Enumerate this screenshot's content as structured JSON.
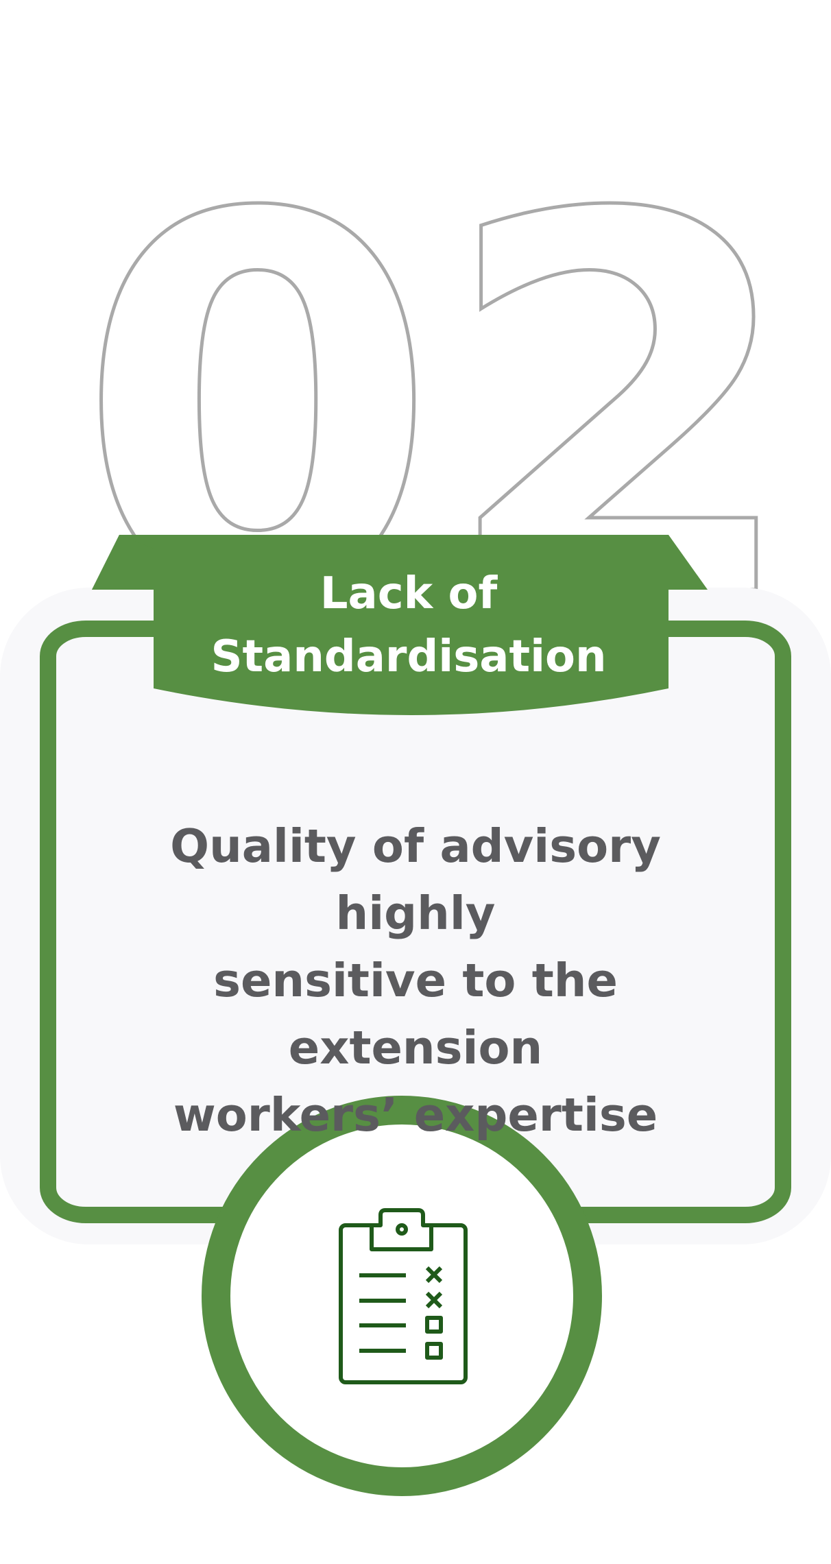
{
  "badge": {
    "number": "02",
    "title_line1": "Lack of",
    "title_line2": "Standardisation"
  },
  "card": {
    "text_line1": "Quality of advisory highly",
    "text_line2": "sensitive to the extension",
    "text_line3": "workers’ expertise"
  },
  "icon": {
    "name": "clipboard-checklist-icon"
  },
  "colors": {
    "accent": "#578f43",
    "number_outline": "#a9a9a9",
    "card_bg": "#f8f8fa",
    "text": "#5b5b5e",
    "icon_stroke": "#1f5a1a"
  }
}
